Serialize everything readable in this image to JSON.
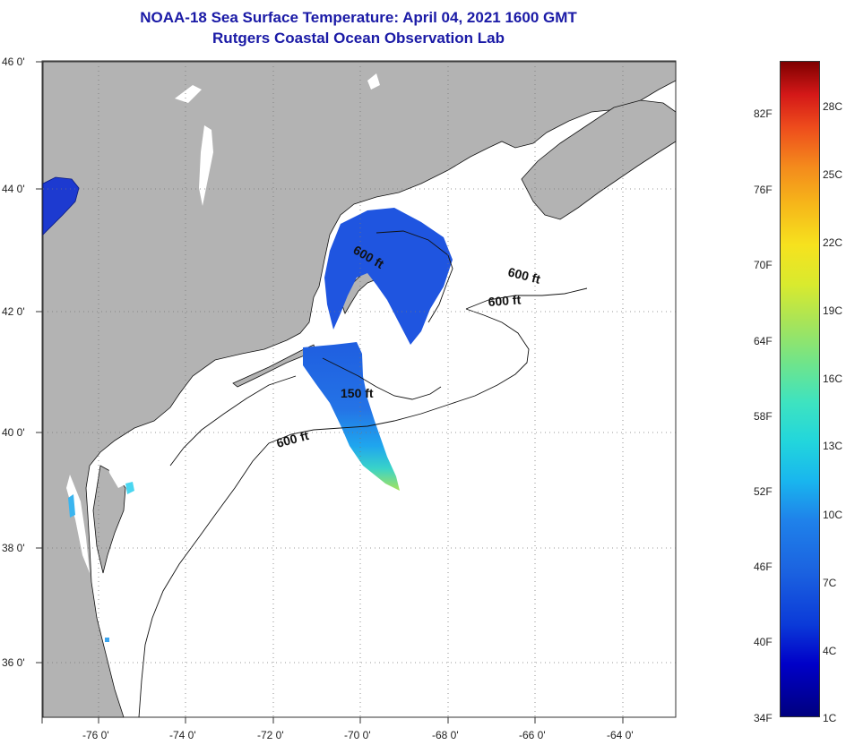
{
  "title_line1": "NOAA-18 Sea Surface Temperature:  April 04, 2021 1600 GMT",
  "title_line2": "Rutgers Coastal Ocean Observation Lab",
  "map": {
    "lat_labels": [
      "46 0'",
      "44 0'",
      "42 0'",
      "40 0'",
      "38 0'",
      "36 0'"
    ],
    "lon_labels": [
      "-76 0'",
      "-74 0'",
      "-72 0'",
      "-70 0'",
      "-68 0'",
      "-66 0'",
      "-64 0'"
    ],
    "contour_labels": [
      "600 ft",
      "600 ft",
      "600 ft",
      "150 ft",
      "600 ft"
    ],
    "colors": {
      "land": "#b3b3b3",
      "ocean": "#ffffff",
      "grid": "#777777"
    }
  },
  "colorbar": {
    "fahrenheit": [
      "82F",
      "76F",
      "70F",
      "64F",
      "58F",
      "52F",
      "46F",
      "40F",
      "34F"
    ],
    "celsius": [
      "28C",
      "25C",
      "22C",
      "19C",
      "16C",
      "13C",
      "10C",
      "7C",
      "4C",
      "1C"
    ]
  }
}
